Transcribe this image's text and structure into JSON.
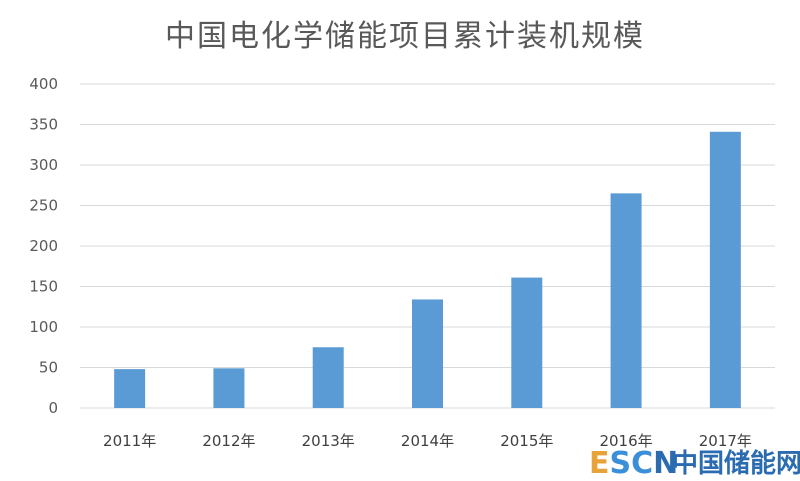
{
  "chart_data": {
    "type": "bar",
    "title": "中国电化学储能项目累计装机规模",
    "xlabel": "",
    "ylabel": "",
    "categories": [
      "2011年",
      "2012年",
      "2013年",
      "2014年",
      "2015年",
      "2016年",
      "2017年"
    ],
    "values": [
      48,
      49,
      75,
      134,
      161,
      265,
      341
    ],
    "ylim": [
      0,
      400
    ],
    "yticks": [
      0,
      50,
      100,
      150,
      200,
      250,
      300,
      350,
      400
    ],
    "grid": true,
    "legend": "none",
    "bar_color": "#5b9bd5"
  },
  "watermark": {
    "escn": "ESCN",
    "cn": "中国储能网",
    "color_e": "#e8a23a",
    "color_s": "#3a8fd8",
    "color_c": "#3a8fd8",
    "color_n": "#2b6cb0"
  }
}
